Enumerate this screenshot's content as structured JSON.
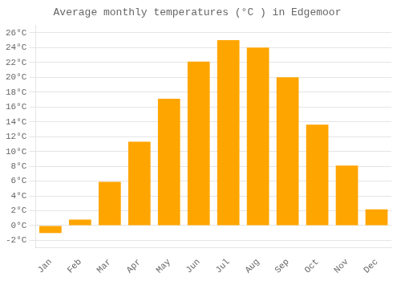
{
  "chart_data": {
    "type": "bar",
    "title": "Average monthly temperatures (°C ) in Edgemoor",
    "categories": [
      "Jan",
      "Feb",
      "Mar",
      "Apr",
      "May",
      "Jun",
      "Jul",
      "Aug",
      "Sep",
      "Oct",
      "Nov",
      "Dec"
    ],
    "values": [
      -1.0,
      0.8,
      5.9,
      11.3,
      17.1,
      22.1,
      25.0,
      24.0,
      20.0,
      13.6,
      8.1,
      2.2
    ],
    "color": "#FFA500",
    "ylim": [
      -3,
      27
    ],
    "yticks": [
      {
        "value": -2,
        "label": "-2°C"
      },
      {
        "value": 0,
        "label": "0°C"
      },
      {
        "value": 2,
        "label": "2°C"
      },
      {
        "value": 4,
        "label": "4°C"
      },
      {
        "value": 6,
        "label": "6°C"
      },
      {
        "value": 8,
        "label": "8°C"
      },
      {
        "value": 10,
        "label": "10°C"
      },
      {
        "value": 12,
        "label": "12°C"
      },
      {
        "value": 14,
        "label": "14°C"
      },
      {
        "value": 16,
        "label": "16°C"
      },
      {
        "value": 18,
        "label": "18°C"
      },
      {
        "value": 20,
        "label": "20°C"
      },
      {
        "value": 22,
        "label": "22°C"
      },
      {
        "value": 24,
        "label": "24°C"
      },
      {
        "value": 26,
        "label": "26°C"
      }
    ],
    "grid": true
  }
}
